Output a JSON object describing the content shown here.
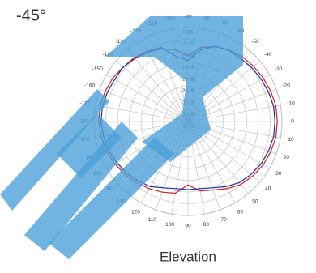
{
  "chart_data": {
    "type": "polar",
    "title": "-45°",
    "axis_label": "Elevation",
    "angles": [
      -180,
      -170,
      -160,
      -150,
      -140,
      -130,
      -120,
      -110,
      -100,
      -90,
      -80,
      -70,
      -60,
      -50,
      -40,
      -30,
      -20,
      -10,
      0,
      10,
      20,
      30,
      40,
      50,
      60,
      70,
      80,
      90,
      100,
      110,
      120,
      130,
      140,
      150,
      160,
      170
    ],
    "rlim": [
      -40,
      0
    ],
    "rticks": [
      {
        "value": 0,
        "label": "0 dB"
      },
      {
        "value": -5,
        "label": "-5 dB"
      },
      {
        "value": -10,
        "label": "-10 dB"
      },
      {
        "value": -15,
        "label": "-15 dB"
      },
      {
        "value": -20,
        "label": "-20 dB"
      },
      {
        "value": -25,
        "label": "-25 dB"
      },
      {
        "value": -30,
        "label": "-30 dB"
      },
      {
        "value": -35,
        "label": "-35 dB"
      },
      {
        "value": -40,
        "label": "-40 dB"
      }
    ],
    "series": [
      {
        "color": "#d0202a",
        "values": [
          -2,
          -2,
          -2.5,
          -3,
          -4,
          -5,
          -6,
          -7,
          -9,
          -12,
          -8,
          -6,
          -5,
          -4,
          -3.5,
          -3,
          -2.5,
          -2,
          -2,
          -2,
          -2.5,
          -3,
          -4,
          -5,
          -7,
          -9,
          -10,
          -13,
          -9,
          -8,
          -7,
          -6,
          -5,
          -4,
          -3,
          -2.5
        ]
      },
      {
        "color": "#1f2f9a",
        "values": [
          -3,
          -3,
          -3.5,
          -4,
          -4,
          -4.5,
          -5.5,
          -6.5,
          -12,
          -14,
          -9,
          -6,
          -5,
          -5,
          -4.5,
          -4,
          -3.5,
          -3,
          -3,
          -3,
          -3.5,
          -4,
          -5,
          -6,
          -8,
          -10,
          -11,
          -11,
          -11,
          -10,
          -8,
          -7,
          -6,
          -5,
          -4,
          -3.5
        ]
      }
    ]
  }
}
